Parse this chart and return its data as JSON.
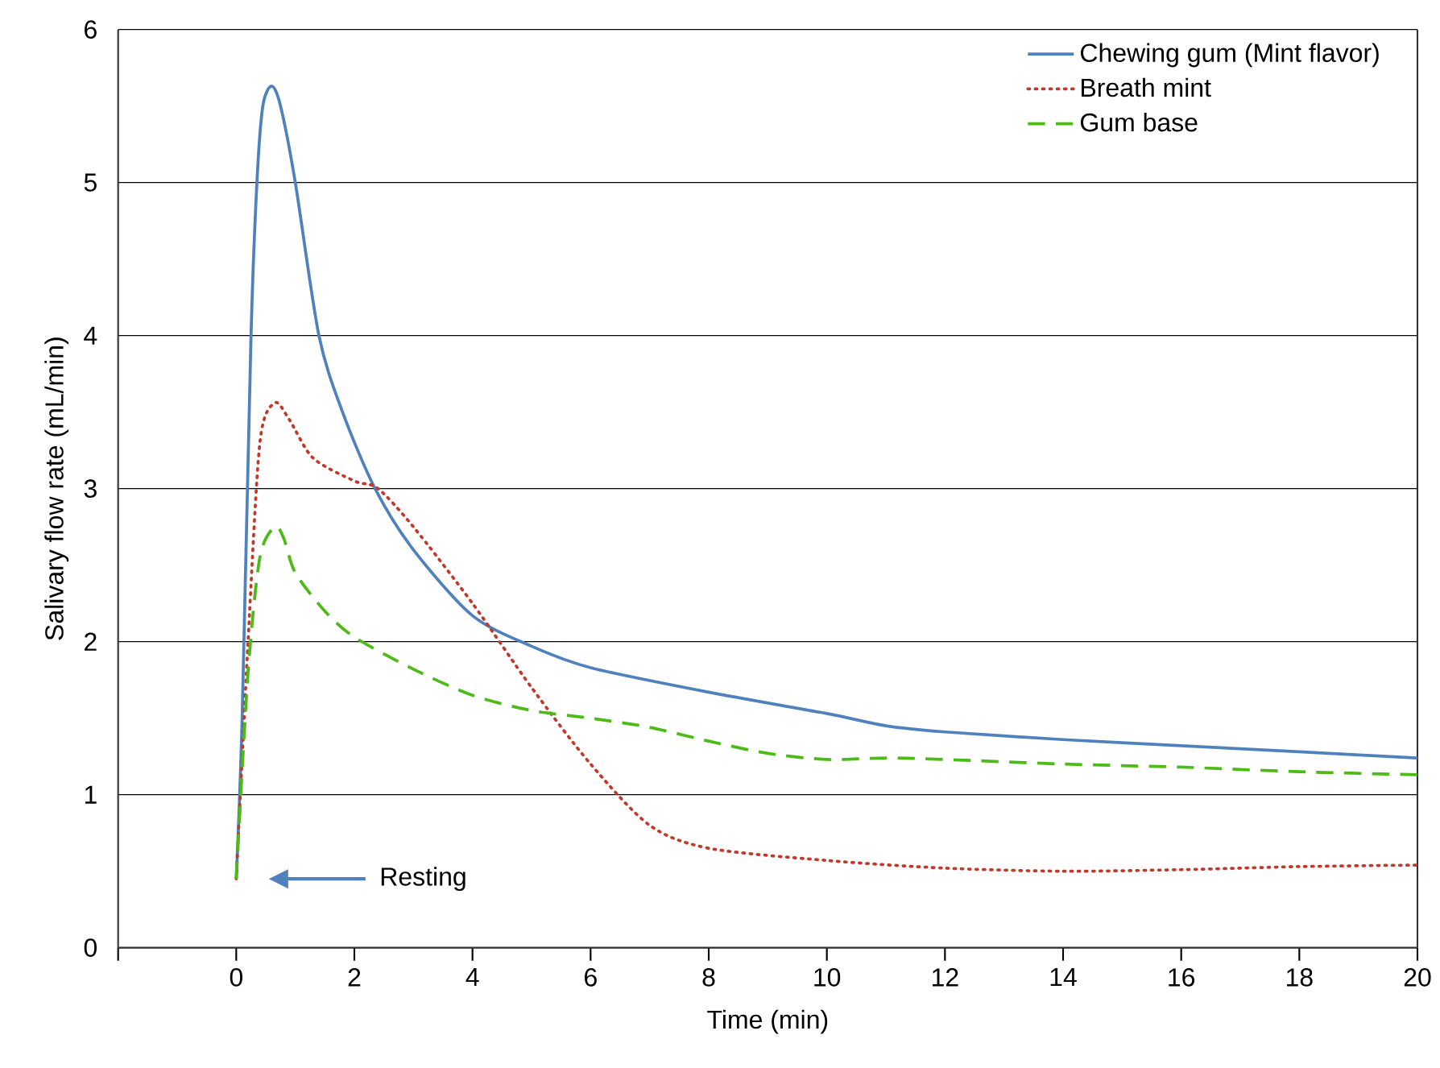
{
  "chart_data": {
    "type": "line",
    "xlabel": "Time (min)",
    "ylabel": "Salivary flow rate (mL/min)",
    "xlim": [
      -2,
      20
    ],
    "ylim": [
      0,
      6
    ],
    "xticks": [
      {
        "value": -2,
        "label": null
      },
      0,
      2,
      4,
      6,
      8,
      10,
      12,
      14,
      16,
      18,
      20
    ],
    "yticks": [
      0,
      1,
      2,
      3,
      4,
      5,
      6
    ],
    "grid": "y",
    "legend": "top right",
    "annotations": [
      "Resting"
    ],
    "series": [
      {
        "name": "Chewing gum (Mint flavor)",
        "color": "#4f81bd",
        "line_style": "solid",
        "x": [
          0,
          0.1,
          0.25,
          0.35,
          0.45,
          0.6,
          0.75,
          1.0,
          1.4,
          1.8,
          2.35,
          3,
          4,
          5,
          6,
          8,
          10,
          11,
          12,
          14,
          16,
          18,
          20
        ],
        "values": [
          0.45,
          1.5,
          4.0,
          5.0,
          5.5,
          5.63,
          5.5,
          5.0,
          4.0,
          3.5,
          3.0,
          2.6,
          2.17,
          1.97,
          1.83,
          1.67,
          1.53,
          1.45,
          1.41,
          1.36,
          1.32,
          1.28,
          1.24
        ]
      },
      {
        "name": "Breath mint",
        "color": "#c0392b",
        "line_style": "dotted",
        "x": [
          0,
          0.2,
          0.4,
          0.65,
          0.9,
          1.3,
          2,
          2.4,
          3,
          4,
          5,
          6,
          7,
          8,
          10,
          12,
          14,
          16,
          18,
          20
        ],
        "values": [
          0.45,
          2.0,
          3.3,
          3.56,
          3.45,
          3.2,
          3.05,
          3.0,
          2.75,
          2.25,
          1.7,
          1.2,
          0.8,
          0.65,
          0.57,
          0.52,
          0.5,
          0.51,
          0.53,
          0.54
        ]
      },
      {
        "name": "Gum base",
        "color": "#4cbb17",
        "line_style": "dashed",
        "x": [
          0,
          0.2,
          0.4,
          0.65,
          0.8,
          1,
          1.5,
          2,
          3,
          4,
          5,
          6,
          7,
          8,
          9,
          10,
          11,
          12,
          14,
          16,
          18,
          20
        ],
        "values": [
          0.45,
          1.8,
          2.55,
          2.75,
          2.68,
          2.45,
          2.2,
          2.03,
          1.82,
          1.65,
          1.55,
          1.5,
          1.44,
          1.35,
          1.27,
          1.23,
          1.24,
          1.23,
          1.2,
          1.18,
          1.15,
          1.13
        ]
      }
    ]
  }
}
